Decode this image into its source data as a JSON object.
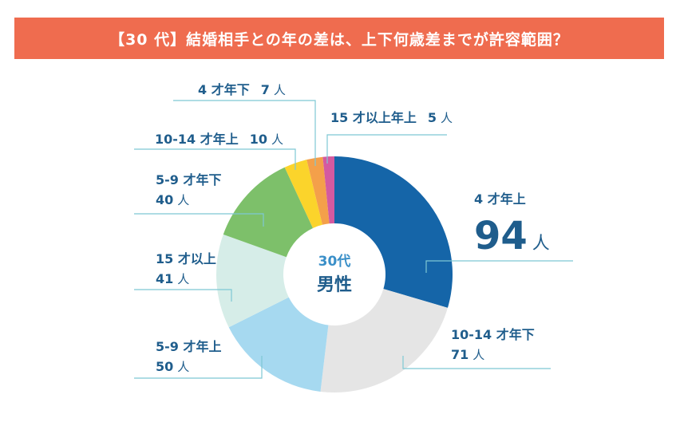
{
  "title": "【30 代】結婚相手との年の差は、上下何歳差までが許容範囲？",
  "center": {
    "line1": "30代",
    "line2": "男性"
  },
  "chart_data": {
    "type": "pie",
    "donut": true,
    "title": "【30 代】結婚相手との年の差は、上下何歳差までが許容範囲？",
    "slices": [
      {
        "label": "4 才年上",
        "value": 94,
        "value_text": "94",
        "unit": "人",
        "color": "#1565a8"
      },
      {
        "label": "10-14 才年下",
        "value": 71,
        "value_text": "71",
        "unit": "人",
        "color": "#e5e5e5"
      },
      {
        "label": "5-9 才年上",
        "value": 50,
        "value_text": "50",
        "unit": "人",
        "color": "#a6d9f0"
      },
      {
        "label": "15 才以上",
        "value": 41,
        "value_text": "41",
        "unit": "人",
        "color": "#d6ede8"
      },
      {
        "label": "5-9 才年下",
        "value": 40,
        "value_text": "40",
        "unit": "人",
        "color": "#7dc06a"
      },
      {
        "label": "10-14 才年上",
        "value": 10,
        "value_text": "10",
        "unit": "人",
        "color": "#fbd42b"
      },
      {
        "label": "4 才年下",
        "value": 7,
        "value_text": "7",
        "unit": "人",
        "color": "#f4a04a"
      },
      {
        "label": "15 才以上年上",
        "value": 5,
        "value_text": "5",
        "unit": "人",
        "color": "#d45aa0"
      }
    ]
  }
}
